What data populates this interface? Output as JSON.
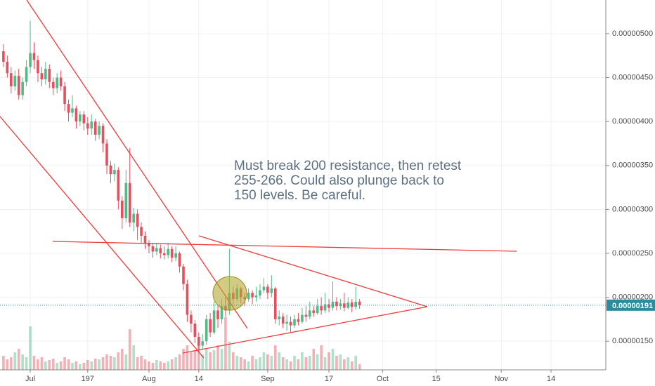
{
  "chart_data": {
    "type": "candlestick",
    "x": [
      175,
      176,
      177,
      178,
      179,
      180,
      181,
      182,
      183,
      184,
      185,
      186,
      187,
      188,
      189,
      190,
      191,
      192,
      193,
      194,
      195,
      196,
      197,
      198,
      199,
      200,
      201,
      202,
      203,
      204,
      205,
      206,
      207,
      208,
      209,
      210,
      211,
      212,
      213,
      214,
      215,
      216,
      217,
      218,
      219,
      220,
      221,
      222,
      223,
      224,
      225,
      226,
      227,
      228,
      229,
      230,
      231,
      232,
      233,
      234,
      235,
      236,
      237,
      238,
      239,
      240,
      241,
      242,
      243,
      244,
      245,
      246,
      247,
      248,
      249,
      250,
      251,
      252,
      253,
      254,
      255,
      256,
      257,
      258,
      259,
      260,
      261,
      262,
      263,
      264,
      265,
      266,
      267,
      268
    ],
    "open": [
      4.8e-06,
      4.68e-06,
      4.55e-06,
      4.4e-06,
      4.52e-06,
      4.3e-06,
      4.45e-06,
      4.62e-06,
      4.78e-06,
      4.7e-06,
      4.55e-06,
      4.48e-06,
      4.6e-06,
      4.45e-06,
      4.38e-06,
      4.5e-06,
      4.4e-06,
      4.2e-06,
      4.1e-06,
      4.15e-06,
      4e-06,
      4.08e-06,
      3.98e-06,
      3.92e-06,
      4e-06,
      3.85e-06,
      3.95e-06,
      3.75e-06,
      3.5e-06,
      3.4e-06,
      3.45e-06,
      3.1e-06,
      2.9e-06,
      3.3e-06,
      2.85e-06,
      2.95e-06,
      2.8e-06,
      2.7e-06,
      2.62e-06,
      2.58e-06,
      2.52e-06,
      2.56e-06,
      2.5e-06,
      2.48e-06,
      2.55e-06,
      2.45e-06,
      2.5e-06,
      2.35e-06,
      2.15e-06,
      1.8e-06,
      1.7e-06,
      1.55e-06,
      1.45e-06,
      1.5e-06,
      1.75e-06,
      1.6e-06,
      1.85e-06,
      1.75e-06,
      1.9e-06,
      1.85e-06,
      2.05e-06,
      1.98e-06,
      2.1e-06,
      2e-06,
      1.98e-06,
      2.05e-06,
      2e-06,
      2.02e-06,
      2.08e-06,
      2.12e-06,
      2.05e-06,
      2.1e-06,
      1.75e-06,
      1.78e-06,
      1.7e-06,
      1.72e-06,
      1.68e-06,
      1.75e-06,
      1.72e-06,
      1.8e-06,
      1.78e-06,
      1.85e-06,
      1.82e-06,
      1.9e-06,
      1.85e-06,
      1.92e-06,
      1.88e-06,
      1.95e-06,
      1.9e-06,
      1.93e-06,
      1.88e-06,
      1.94e-06,
      1.89e-06,
      1.95e-06
    ],
    "high": [
      4.88e-06,
      4.75e-06,
      4.62e-06,
      4.58e-06,
      4.6e-06,
      4.5e-06,
      4.7e-06,
      5.15e-06,
      4.9e-06,
      4.75e-06,
      4.62e-06,
      4.68e-06,
      4.65e-06,
      4.5e-06,
      4.55e-06,
      4.58e-06,
      4.45e-06,
      4.25e-06,
      4.3e-06,
      4.18e-06,
      4.12e-06,
      4.12e-06,
      4.05e-06,
      4.08e-06,
      4.03e-06,
      4e-06,
      3.98e-06,
      3.8e-06,
      3.55e-06,
      3.52e-06,
      3.48e-06,
      3.15e-06,
      3.45e-06,
      3.7e-06,
      3.02e-06,
      3e-06,
      2.85e-06,
      2.75e-06,
      2.65e-06,
      2.62e-06,
      2.62e-06,
      2.6e-06,
      2.58e-06,
      2.62e-06,
      2.58e-06,
      2.58e-06,
      2.52e-06,
      2.38e-06,
      2.2e-06,
      1.85e-06,
      1.74e-06,
      1.6e-06,
      1.58e-06,
      1.8e-06,
      1.82e-06,
      1.95e-06,
      1.9e-06,
      1.98e-06,
      2e-06,
      2.55e-06,
      2.12e-06,
      2.15e-06,
      2.12e-06,
      2.05e-06,
      2.1e-06,
      2.08e-06,
      2.12e-06,
      2.15e-06,
      2.22e-06,
      2.15e-06,
      2.25e-06,
      2.12e-06,
      1.85e-06,
      1.82e-06,
      1.8e-06,
      1.78e-06,
      1.8e-06,
      1.82e-06,
      1.88e-06,
      1.9e-06,
      1.95e-06,
      1.9e-06,
      1.98e-06,
      2e-06,
      2.05e-06,
      1.98e-06,
      2.18e-06,
      2e-06,
      1.98e-06,
      2.05e-06,
      2e-06,
      1.98e-06,
      2.12e-06,
      1.98e-06
    ],
    "low": [
      4.62e-06,
      4.5e-06,
      4.32e-06,
      4.35e-06,
      4.25e-06,
      4.25e-06,
      4.4e-06,
      4.55e-06,
      4.6e-06,
      4.45e-06,
      4.4e-06,
      4.42e-06,
      4.38e-06,
      4.3e-06,
      4.32e-06,
      4.35e-06,
      4.12e-06,
      4e-06,
      4.05e-06,
      3.92e-06,
      3.95e-06,
      3.9e-06,
      3.85e-06,
      3.85e-06,
      3.78e-06,
      3.8e-06,
      3.65e-06,
      3.4e-06,
      3.3e-06,
      3.32e-06,
      3e-06,
      2.78e-06,
      2.85e-06,
      2.8e-06,
      2.75e-06,
      2.65e-06,
      2.62e-06,
      2.55e-06,
      2.5e-06,
      2.45e-06,
      2.48e-06,
      2.44e-06,
      2.43e-06,
      2.44e-06,
      2.4e-06,
      2.41e-06,
      2.28e-06,
      2.08e-06,
      1.72e-06,
      1.6e-06,
      1.48e-06,
      1.38e-06,
      1.4e-06,
      1.46e-06,
      1.55e-06,
      1.58e-06,
      1.65e-06,
      1.7e-06,
      1.78e-06,
      1.8e-06,
      1.92e-06,
      1.95e-06,
      1.93e-06,
      1.9e-06,
      1.95e-06,
      1.92e-06,
      1.95e-06,
      1.98e-06,
      2.05e-06,
      1.98e-06,
      2e-06,
      1.7e-06,
      1.68e-06,
      1.65e-06,
      1.62e-06,
      1.6e-06,
      1.65e-06,
      1.68e-06,
      1.7e-06,
      1.72e-06,
      1.75e-06,
      1.78e-06,
      1.8e-06,
      1.8e-06,
      1.82e-06,
      1.83e-06,
      1.85e-06,
      1.85e-06,
      1.86e-06,
      1.84e-06,
      1.86e-06,
      1.83e-06,
      1.86e-06,
      1.87e-06
    ],
    "close": [
      4.68e-06,
      4.55e-06,
      4.4e-06,
      4.52e-06,
      4.3e-06,
      4.45e-06,
      4.62e-06,
      4.78e-06,
      4.7e-06,
      4.55e-06,
      4.48e-06,
      4.6e-06,
      4.45e-06,
      4.38e-06,
      4.5e-06,
      4.4e-06,
      4.2e-06,
      4.1e-06,
      4.15e-06,
      4e-06,
      4.08e-06,
      3.98e-06,
      3.92e-06,
      4e-06,
      3.85e-06,
      3.95e-06,
      3.75e-06,
      3.5e-06,
      3.4e-06,
      3.45e-06,
      3.1e-06,
      2.9e-06,
      3.3e-06,
      2.85e-06,
      2.95e-06,
      2.8e-06,
      2.7e-06,
      2.62e-06,
      2.58e-06,
      2.52e-06,
      2.56e-06,
      2.5e-06,
      2.48e-06,
      2.55e-06,
      2.45e-06,
      2.5e-06,
      2.35e-06,
      2.15e-06,
      1.8e-06,
      1.7e-06,
      1.55e-06,
      1.45e-06,
      1.5e-06,
      1.75e-06,
      1.6e-06,
      1.85e-06,
      1.75e-06,
      1.9e-06,
      1.85e-06,
      2.05e-06,
      1.98e-06,
      2.1e-06,
      2e-06,
      1.98e-06,
      2.05e-06,
      2e-06,
      2.02e-06,
      2.08e-06,
      2.12e-06,
      2.05e-06,
      2.1e-06,
      1.75e-06,
      1.78e-06,
      1.7e-06,
      1.72e-06,
      1.68e-06,
      1.75e-06,
      1.72e-06,
      1.8e-06,
      1.78e-06,
      1.85e-06,
      1.82e-06,
      1.9e-06,
      1.85e-06,
      1.92e-06,
      1.88e-06,
      1.95e-06,
      1.9e-06,
      1.93e-06,
      1.88e-06,
      1.94e-06,
      1.89e-06,
      1.95e-06,
      1.91e-06
    ],
    "volume": [
      20,
      15,
      18,
      25,
      30,
      22,
      18,
      62,
      20,
      15,
      18,
      12,
      14,
      16,
      10,
      12,
      18,
      15,
      10,
      12,
      8,
      10,
      14,
      12,
      16,
      15,
      18,
      22,
      20,
      18,
      25,
      30,
      22,
      58,
      35,
      18,
      20,
      15,
      12,
      10,
      14,
      12,
      10,
      12,
      15,
      18,
      22,
      30,
      35,
      25,
      28,
      40,
      22,
      30,
      25,
      28,
      35,
      30,
      75,
      40,
      25,
      20,
      18,
      15,
      12,
      20,
      15,
      18,
      25,
      22,
      20,
      35,
      25,
      18,
      15,
      12,
      20,
      15,
      25,
      18,
      20,
      30,
      22,
      35,
      18,
      25,
      30,
      20,
      22,
      15,
      18,
      12,
      20,
      8
    ],
    "volume_lim": [
      0,
      100
    ],
    "up_color": "#53b987",
    "down_color": "#eb4d5c",
    "xlim": [
      174.1,
      332.3
    ],
    "xticks": [
      {
        "value": 182,
        "label": "Jul"
      },
      197,
      {
        "value": 213,
        "label": "Aug"
      },
      {
        "value": 226,
        "label": "14"
      },
      {
        "value": 244,
        "label": "Sep"
      },
      {
        "value": 260,
        "label": "17"
      },
      {
        "value": 274,
        "label": "Oct"
      },
      {
        "value": 288,
        "label": "15"
      },
      {
        "value": 305,
        "label": "Nov"
      },
      {
        "value": 318,
        "label": "14"
      }
    ],
    "ylim": [
      1.174e-06,
      5.383e-06
    ],
    "yticks": [
      {
        "value": 1.5e-06,
        "label": "0.00000150"
      },
      {
        "value": 2e-06,
        "label": "0.00000200"
      },
      {
        "value": 2.5e-06,
        "label": "0.00000250"
      },
      {
        "value": 3e-06,
        "label": "0.00000300"
      },
      {
        "value": 3.5e-06,
        "label": "0.00000350"
      },
      {
        "value": 4e-06,
        "label": "0.00000400"
      },
      {
        "value": 4.5e-06,
        "label": "0.00000450"
      },
      {
        "value": 5e-06,
        "label": "0.00000500"
      }
    ],
    "grid": true,
    "last_price": {
      "value": 1.91e-06,
      "label": "0.00000191"
    },
    "annotation": [
      "Must break 200 resistance, then retest",
      "255-266. Could also plunge back to",
      "150 levels. Be careful."
    ]
  }
}
